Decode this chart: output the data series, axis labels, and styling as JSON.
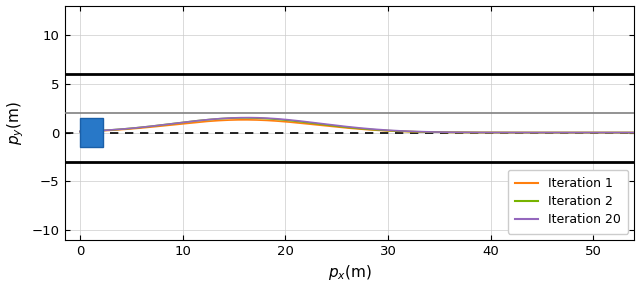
{
  "title": "",
  "xlabel": "$p_x$(m)",
  "ylabel": "$p_y$(m)",
  "xlim": [
    -1.5,
    54
  ],
  "ylim": [
    -11,
    13
  ],
  "yticks": [
    -10,
    -5,
    0,
    5,
    10
  ],
  "xticks": [
    0,
    10,
    20,
    30,
    40,
    50
  ],
  "road_upper_y": 6.0,
  "road_lower_y": -3.0,
  "lane_upper_y": 2.0,
  "dashed_line_y": 0.0,
  "obstacle_x_min": 0.0,
  "obstacle_x_max": 2.2,
  "obstacle_y_min": -1.5,
  "obstacle_y_max": 1.5,
  "obstacle_facecolor": "#2878c8",
  "obstacle_edgecolor": "#1a5fa8",
  "iter1_color": "#ff7f0e",
  "iter2_color": "#77b300",
  "iter20_color": "#9467bd",
  "trajectory_peak_x": 16.0,
  "trajectory_peak_y": 1.5,
  "trajectory_sigma": 7.0,
  "background_color": "#ffffff",
  "grid_color": "#cccccc",
  "legend_entries": [
    "Iteration 1",
    "Iteration 2",
    "Iteration 20"
  ],
  "legend_colors": [
    "#ff7f0e",
    "#77b300",
    "#9467bd"
  ],
  "figwidth": 6.4,
  "figheight": 2.88,
  "dpi": 100
}
